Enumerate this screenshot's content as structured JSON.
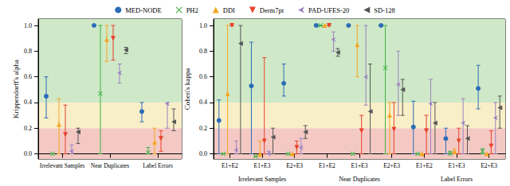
{
  "chart_data": [
    {
      "type": "scatter",
      "y_label": "Krippendorff's alpha",
      "categories": [
        "Irrelevant Samples",
        "Near Duplicates",
        "Label Errors"
      ],
      "ylim": [
        -0.04,
        1.05
      ],
      "yticks": [
        {
          "value": 0,
          "label": "0.0"
        },
        {
          "value": 0.2,
          "label": "0.2"
        },
        {
          "value": 0.4,
          "label": "0.4"
        },
        {
          "value": 0.6,
          "label": "0.6"
        },
        {
          "value": 0.8,
          "label": "0.8"
        },
        {
          "value": 1,
          "label": "1.0"
        }
      ],
      "grid": false,
      "legend": "top",
      "bands": [
        {
          "from": -0.04,
          "to": 0.2,
          "color": "#f4c9c4"
        },
        {
          "from": 0.2,
          "to": 0.4,
          "color": "#f8efc8"
        },
        {
          "from": 0.4,
          "to": 1.05,
          "color": "#cfe9c8"
        }
      ],
      "series": [
        {
          "name": "MED-NODE",
          "color": "#2b6cb8",
          "marker": "circle",
          "values": [
            0.45,
            1.0,
            0.33
          ],
          "lower": [
            0.28,
            1.0,
            0.25
          ],
          "upper": [
            0.6,
            1.0,
            0.4
          ]
        },
        {
          "name": "PH2",
          "color": "#3cb043",
          "marker": "x",
          "values": [
            0.0,
            0.47,
            0.01
          ],
          "lower": [
            0.0,
            0.0,
            0.0
          ],
          "upper": [
            0.0,
            1.0,
            0.05
          ]
        },
        {
          "name": "DDI",
          "color": "#f5a623",
          "marker": "triangle",
          "values": [
            0.23,
            0.89,
            0.09
          ],
          "lower": [
            0.0,
            0.72,
            0.0
          ],
          "upper": [
            0.43,
            1.0,
            0.2
          ]
        },
        {
          "name": "Derm7pt",
          "color": "#e8412b",
          "marker": "triangle-down",
          "values": [
            0.15,
            0.9,
            0.12
          ],
          "lower": [
            0.0,
            0.73,
            0.02
          ],
          "upper": [
            0.38,
            1.0,
            0.18
          ]
        },
        {
          "name": "PAD-UFES-20",
          "color": "#9a80c2",
          "marker": "arrow-left",
          "values": [
            0.02,
            0.63,
            0.39
          ],
          "lower": [
            0.0,
            0.55,
            0.2
          ],
          "upper": [
            0.07,
            0.7,
            0.4
          ]
        },
        {
          "name": "SD-128",
          "color": "#555555",
          "marker": "triangle-left",
          "values": [
            0.17,
            0.81,
            0.25
          ],
          "lower": [
            0.08,
            0.78,
            0.18
          ],
          "upper": [
            0.2,
            0.83,
            0.35
          ]
        }
      ]
    },
    {
      "type": "scatter",
      "y_label": "Cohen's kappa",
      "categories": [
        "E1+E2",
        "E1+E3",
        "E2+E3",
        "E1+E2",
        "E1+E3",
        "E2+E3",
        "E1+E2",
        "E1+E3",
        "E2+E3"
      ],
      "group_labels": [
        "Irrelevant Samples",
        "Near Duplicates",
        "Label Errors"
      ],
      "ylim": [
        -0.04,
        1.05
      ],
      "yticks": [
        {
          "value": 0,
          "label": "0.0"
        },
        {
          "value": 0.2,
          "label": "0.2"
        },
        {
          "value": 0.4,
          "label": "0.4"
        },
        {
          "value": 0.6,
          "label": "0.6"
        },
        {
          "value": 0.8,
          "label": "0.8"
        },
        {
          "value": 1,
          "label": "1.0"
        }
      ],
      "grid": false,
      "bands": [
        {
          "from": -0.04,
          "to": 0.2,
          "color": "#f4c9c4"
        },
        {
          "from": 0.2,
          "to": 0.4,
          "color": "#f8efc8"
        },
        {
          "from": 0.4,
          "to": 1.05,
          "color": "#cfe9c8"
        }
      ],
      "series": [
        {
          "name": "MED-NODE",
          "color": "#2b6cb8",
          "marker": "circle",
          "values": [
            0.26,
            0.53,
            0.55,
            1.0,
            1.0,
            1.0,
            0.21,
            0.12,
            0.51
          ],
          "lower": [
            0.0,
            0.0,
            0.45,
            1.0,
            1.0,
            1.0,
            0.0,
            0.0,
            0.35
          ],
          "upper": [
            0.42,
            0.87,
            0.7,
            1.0,
            1.0,
            1.0,
            0.41,
            0.2,
            0.69
          ]
        },
        {
          "name": "PH2",
          "color": "#3cb043",
          "marker": "x",
          "values": [
            0.0,
            -0.02,
            0.0,
            1.0,
            0.0,
            0.67,
            0.0,
            0.0,
            0.02
          ],
          "lower": [
            0.0,
            -0.02,
            0.0,
            1.0,
            0.0,
            0.0,
            0.0,
            0.0,
            0.0
          ],
          "upper": [
            0.0,
            -0.02,
            0.0,
            1.0,
            0.0,
            1.0,
            0.0,
            0.02,
            0.04
          ]
        },
        {
          "name": "DDI",
          "color": "#f5a623",
          "marker": "triangle",
          "values": [
            0.47,
            0.0,
            0.0,
            1.0,
            0.85,
            0.3,
            0.0,
            0.02,
            0.0
          ],
          "lower": [
            0.0,
            -0.02,
            0.0,
            1.0,
            0.6,
            0.0,
            0.0,
            0.0,
            0.0
          ],
          "upper": [
            1.0,
            0.1,
            0.0,
            1.0,
            1.0,
            0.4,
            0.0,
            0.04,
            0.0
          ]
        },
        {
          "name": "Derm7pt",
          "color": "#e8412b",
          "marker": "triangle-down",
          "values": [
            1.0,
            0.1,
            0.05,
            1.0,
            0.18,
            0.19,
            0.18,
            0.1,
            0.06
          ],
          "lower": [
            1.0,
            0.0,
            0.0,
            1.0,
            0.0,
            0.0,
            0.0,
            0.0,
            0.0
          ],
          "upper": [
            1.0,
            0.75,
            0.1,
            1.0,
            0.3,
            0.4,
            0.3,
            0.2,
            0.18
          ]
        },
        {
          "name": "PAD-UFES-20",
          "color": "#9a80c2",
          "marker": "arrow-left",
          "values": [
            0.03,
            0.0,
            0.05,
            0.89,
            0.6,
            0.54,
            0.39,
            0.24,
            0.28
          ],
          "lower": [
            0.0,
            0.0,
            0.0,
            0.8,
            0.38,
            0.3,
            0.0,
            0.0,
            0.0
          ],
          "upper": [
            0.1,
            0.02,
            0.12,
            0.95,
            1.0,
            0.8,
            0.58,
            0.43,
            0.4
          ]
        },
        {
          "name": "SD-128",
          "color": "#555555",
          "marker": "triangle-left",
          "values": [
            0.86,
            0.13,
            0.17,
            0.79,
            0.33,
            0.5,
            0.24,
            0.12,
            0.36
          ],
          "lower": [
            0.0,
            0.0,
            0.12,
            0.76,
            0.0,
            0.3,
            0.0,
            0.0,
            0.2
          ],
          "upper": [
            1.0,
            0.2,
            0.22,
            0.82,
            0.7,
            0.58,
            0.4,
            0.22,
            0.45
          ]
        }
      ]
    }
  ]
}
